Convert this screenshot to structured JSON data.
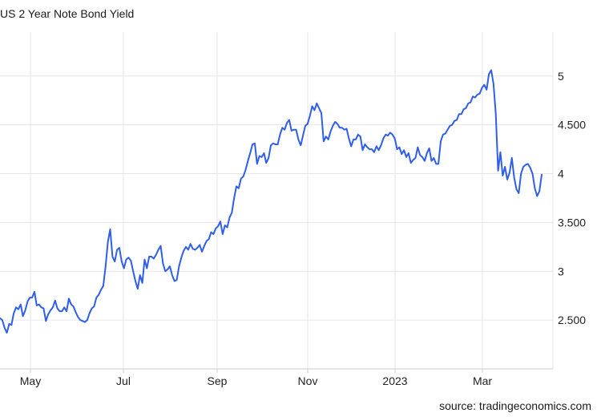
{
  "title": "US 2 Year Note Bond Yield",
  "source": "source: tradingeconomics.com",
  "colors": {
    "line": "#2f5ee8",
    "grid": "#e6e6e6",
    "axis": "#cccccc",
    "text": "#222222"
  },
  "chart_data": {
    "type": "line",
    "title": "US 2 Year Note Bond Yield",
    "xlabel": "",
    "ylabel": "",
    "ylim": [
      2.0,
      5.45
    ],
    "y_ticks": [
      2.5,
      3,
      3.5,
      4,
      4.5,
      5
    ],
    "y_tick_labels": [
      "2.500",
      "3",
      "3.500",
      "4",
      "4.500",
      "5"
    ],
    "x_ticks": [
      "May",
      "Jul",
      "Sep",
      "Nov",
      "2023",
      "Mar"
    ],
    "x_tick_labels": [
      "May",
      "Jul",
      "Sep",
      "Nov",
      "2023",
      "Mar"
    ],
    "grid": true,
    "series": [
      {
        "values": [
          2.52,
          2.5,
          2.42,
          2.37,
          2.46,
          2.45,
          2.57,
          2.63,
          2.61,
          2.66,
          2.54,
          2.6,
          2.69,
          2.73,
          2.73,
          2.79,
          2.65,
          2.66,
          2.63,
          2.62,
          2.49,
          2.56,
          2.6,
          2.63,
          2.7,
          2.62,
          2.59,
          2.59,
          2.63,
          2.59,
          2.72,
          2.66,
          2.64,
          2.58,
          2.53,
          2.5,
          2.49,
          2.48,
          2.5,
          2.57,
          2.62,
          2.64,
          2.73,
          2.76,
          2.81,
          2.85,
          3.05,
          3.3,
          3.43,
          3.15,
          3.1,
          3.22,
          3.24,
          3.1,
          3.03,
          3.12,
          3.14,
          3.11,
          3.0,
          2.9,
          2.82,
          2.96,
          2.88,
          3.12,
          3.03,
          3.15,
          3.15,
          3.13,
          3.17,
          3.22,
          3.26,
          3.08,
          3.0,
          3.02,
          3.05,
          2.96,
          2.9,
          2.91,
          3.05,
          3.14,
          3.21,
          3.25,
          3.22,
          3.28,
          3.23,
          3.22,
          3.24,
          3.27,
          3.2,
          3.26,
          3.31,
          3.33,
          3.4,
          3.38,
          3.44,
          3.46,
          3.51,
          3.38,
          3.47,
          3.45,
          3.55,
          3.6,
          3.75,
          3.87,
          3.85,
          3.95,
          3.97,
          4.04,
          4.13,
          4.21,
          4.3,
          4.31,
          4.1,
          4.18,
          4.17,
          4.21,
          4.11,
          4.16,
          4.29,
          4.31,
          4.3,
          4.3,
          4.4,
          4.47,
          4.45,
          4.52,
          4.55,
          4.44,
          4.45,
          4.45,
          4.35,
          4.29,
          4.39,
          4.49,
          4.51,
          4.59,
          4.69,
          4.65,
          4.72,
          4.67,
          4.62,
          4.33,
          4.38,
          4.35,
          4.43,
          4.49,
          4.53,
          4.51,
          4.47,
          4.47,
          4.45,
          4.46,
          4.36,
          4.28,
          4.35,
          4.35,
          4.4,
          4.38,
          4.24,
          4.3,
          4.27,
          4.25,
          4.25,
          4.22,
          4.28,
          4.24,
          4.29,
          4.36,
          4.4,
          4.39,
          4.42,
          4.4,
          4.36,
          4.25,
          4.27,
          4.2,
          4.24,
          4.17,
          4.21,
          4.11,
          4.14,
          4.16,
          4.27,
          4.19,
          4.17,
          4.13,
          4.21,
          4.26,
          4.13,
          4.16,
          4.1,
          4.1,
          4.33,
          4.4,
          4.41,
          4.45,
          4.49,
          4.5,
          4.54,
          4.55,
          4.61,
          4.61,
          4.66,
          4.67,
          4.72,
          4.73,
          4.79,
          4.78,
          4.81,
          4.82,
          4.88,
          4.91,
          4.86,
          5.02,
          5.06,
          4.92,
          4.61,
          4.03,
          4.22,
          3.98,
          4.07,
          3.94,
          4.01,
          4.16,
          3.96,
          3.84,
          3.8,
          4.0,
          4.07,
          4.09,
          4.1,
          4.06,
          4.0,
          3.85,
          3.77,
          3.82,
          3.99
        ]
      }
    ]
  }
}
